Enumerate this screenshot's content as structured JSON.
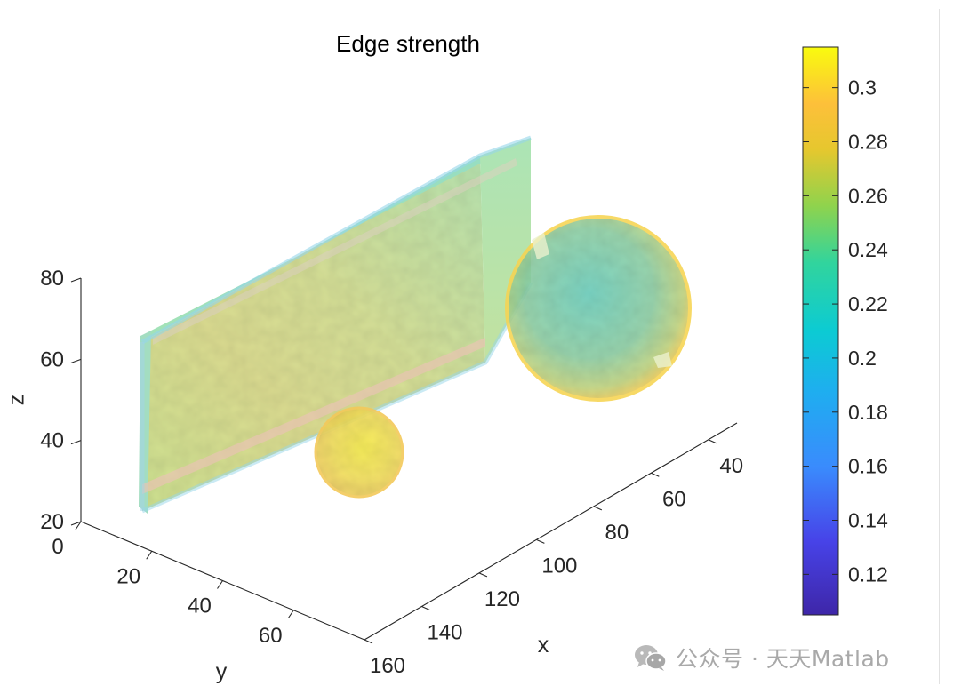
{
  "chart_data": {
    "type": "isosurface-3d",
    "title": "Edge strength",
    "xlabel": "x",
    "ylabel": "y",
    "zlabel": "z",
    "x_ticks": [
      40,
      60,
      80,
      100,
      120,
      140,
      160
    ],
    "y_ticks": [
      0,
      20,
      40,
      60
    ],
    "z_ticks": [
      20,
      40,
      60,
      80
    ],
    "xlim": [
      30,
      160
    ],
    "ylim": [
      0,
      80
    ],
    "zlim": [
      20,
      80
    ],
    "colorbar": {
      "ticks": [
        0.12,
        0.14,
        0.16,
        0.18,
        0.2,
        0.22,
        0.24,
        0.26,
        0.28,
        0.3
      ],
      "tick_labels": [
        "0.12",
        "0.14",
        "0.16",
        "0.18",
        "0.2",
        "0.22",
        "0.24",
        "0.26",
        "0.28",
        "0.3"
      ],
      "range": [
        0.105,
        0.315
      ],
      "colormap": "parula"
    },
    "objects": [
      {
        "shape": "box",
        "typical_value": 0.25
      },
      {
        "shape": "sphere",
        "size": "large",
        "typical_value": 0.23
      },
      {
        "shape": "sphere",
        "size": "small",
        "typical_value": 0.28
      }
    ]
  },
  "watermark": {
    "text": "公众号 · 天天Matlab"
  },
  "colors": {
    "yellow": "#f9fb0e",
    "orange": "#f4c43a",
    "green": "#a6d84b",
    "teal": "#24cdbc",
    "cyan": "#0fb6d4",
    "blue": "#3a8bfd",
    "indigo": "#3e35d4"
  }
}
